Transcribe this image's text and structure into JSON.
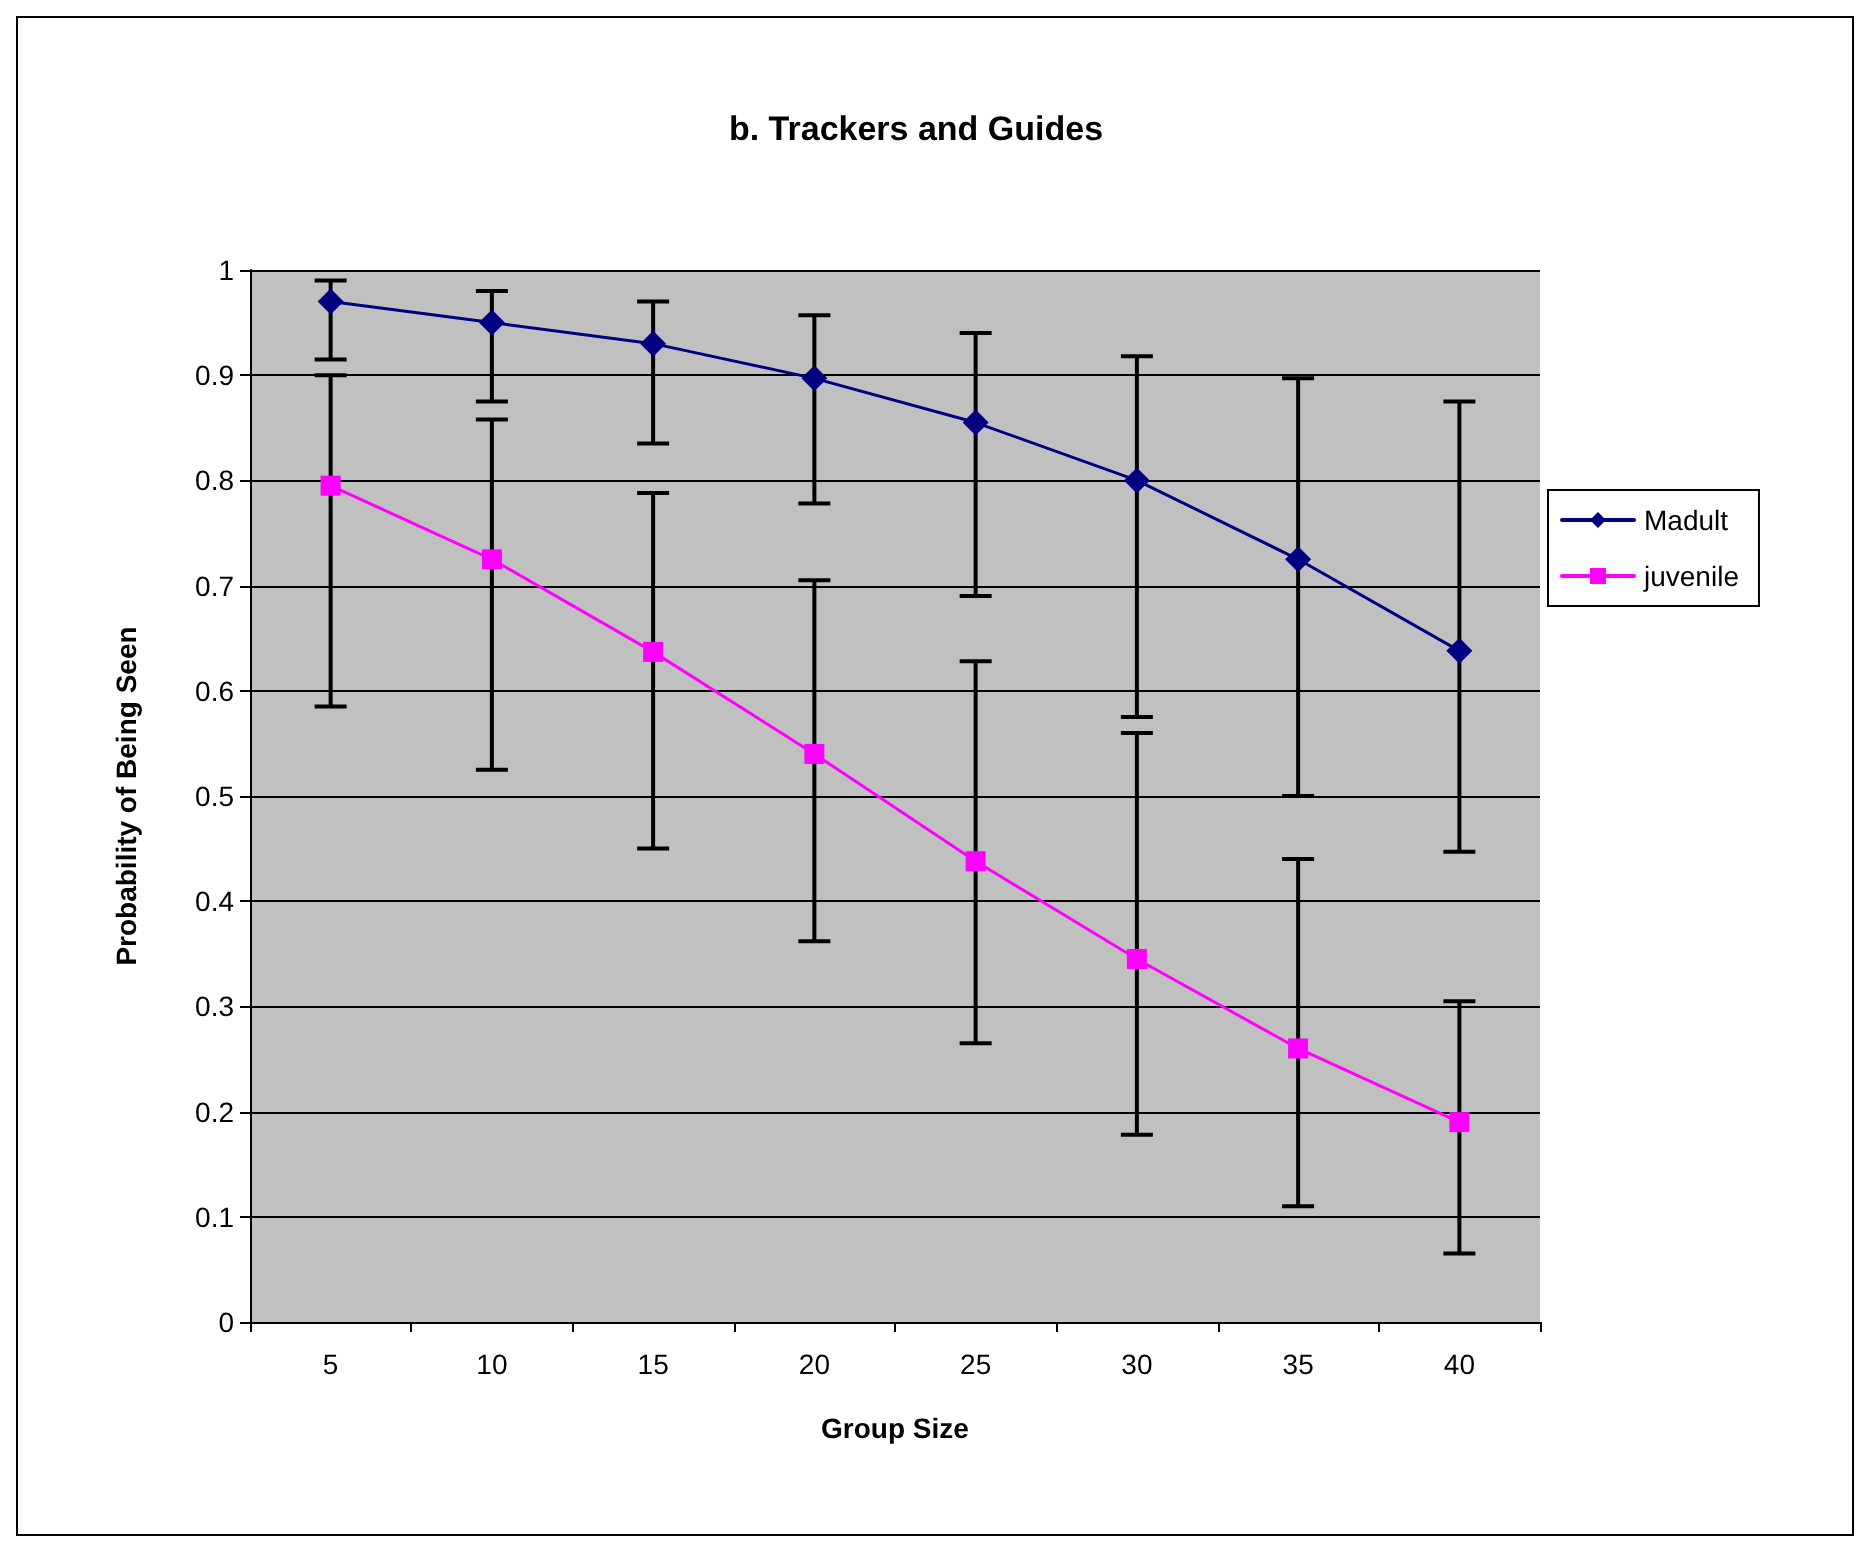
{
  "chart_data": {
    "type": "line",
    "title": "b. Trackers and Guides",
    "xlabel": "Group Size",
    "ylabel": "Probability of Being Seen",
    "categories": [
      "5",
      "10",
      "15",
      "20",
      "25",
      "30",
      "35",
      "40"
    ],
    "series": [
      {
        "name": "Madult",
        "color": "#000080",
        "marker": "diamond",
        "values": [
          0.97,
          0.95,
          0.93,
          0.897,
          0.855,
          0.8,
          0.725,
          0.638
        ],
        "errors": [
          [
            0.915,
            0.99
          ],
          [
            0.875,
            0.98
          ],
          [
            0.835,
            0.97
          ],
          [
            0.778,
            0.957
          ],
          [
            0.69,
            0.94
          ],
          [
            0.575,
            0.918
          ],
          [
            0.5,
            0.897
          ],
          [
            0.447,
            0.875
          ]
        ]
      },
      {
        "name": "juvenile",
        "color": "#ff00ff",
        "marker": "square",
        "values": [
          0.795,
          0.725,
          0.637,
          0.54,
          0.438,
          0.345,
          0.26,
          0.19
        ],
        "errors": [
          [
            0.585,
            0.9
          ],
          [
            0.525,
            0.858
          ],
          [
            0.45,
            0.788
          ],
          [
            0.362,
            0.705
          ],
          [
            0.265,
            0.628
          ],
          [
            0.178,
            0.56
          ],
          [
            0.11,
            0.44
          ],
          [
            0.065,
            0.305
          ]
        ]
      }
    ],
    "ylim": [
      0,
      1
    ],
    "yticks": [
      0,
      0.1,
      0.2,
      0.3,
      0.4,
      0.5,
      0.6,
      0.7,
      0.8,
      0.9,
      1
    ],
    "grid": "y",
    "legend": "right",
    "line_style": "solid"
  }
}
